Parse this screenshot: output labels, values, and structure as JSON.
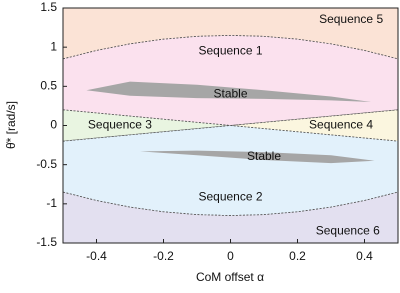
{
  "chart_data": {
    "type": "region",
    "xlabel": "CoM offset α",
    "ylabel": "θ̇* [rad/s]",
    "xlim": [
      -0.5,
      0.5
    ],
    "ylim": [
      -1.5,
      1.5
    ],
    "xticks": [
      -0.4,
      -0.2,
      0,
      0.2,
      0.4
    ],
    "yticks": [
      -1.5,
      -1,
      -0.5,
      0,
      0.5,
      1,
      1.5
    ],
    "regions": [
      {
        "label": "Sequence 5",
        "color": "#fbe3d6",
        "boundary": true,
        "label_x": 0.36,
        "label_y": 1.35,
        "x": [
          -0.5,
          -0.4,
          -0.3,
          -0.2,
          -0.1,
          0,
          0.1,
          0.2,
          0.3,
          0.4,
          0.5,
          0.5,
          -0.5
        ],
        "values": [
          0.85,
          0.958,
          1.042,
          1.102,
          1.138,
          1.15,
          1.138,
          1.102,
          1.042,
          0.958,
          0.85,
          1.5,
          1.5
        ]
      },
      {
        "label": "Sequence 1",
        "color": "#fbe1ee",
        "boundary": true,
        "label_x": 0,
        "label_y": 0.95,
        "x": [
          -0.5,
          -0.4,
          -0.3,
          -0.2,
          -0.1,
          0,
          0.1,
          0.2,
          0.3,
          0.4,
          0.5,
          0.5,
          0,
          -0.5
        ],
        "values": [
          0.85,
          0.958,
          1.042,
          1.102,
          1.138,
          1.15,
          1.138,
          1.102,
          1.042,
          0.958,
          0.85,
          0.2,
          0,
          0.2
        ]
      },
      {
        "label": "Sequence 3",
        "color": "#e9f5e1",
        "boundary": true,
        "label_x": -0.33,
        "label_y": 0,
        "x": [
          -0.5,
          0,
          -0.5
        ],
        "values": [
          0.2,
          0,
          -0.2
        ]
      },
      {
        "label": "Sequence 4",
        "color": "#fbf6df",
        "boundary": true,
        "label_x": 0.33,
        "label_y": 0,
        "x": [
          0.5,
          0,
          0.5
        ],
        "values": [
          0.2,
          0,
          -0.2
        ]
      },
      {
        "label": "Sequence 2",
        "color": "#e2f1fb",
        "boundary": true,
        "label_x": 0,
        "label_y": -0.92,
        "x": [
          -0.5,
          0,
          0.5,
          0.5,
          0.4,
          0.3,
          0.2,
          0.1,
          0,
          -0.1,
          -0.2,
          -0.3,
          -0.4,
          -0.5
        ],
        "values": [
          -0.2,
          0,
          -0.2,
          -0.85,
          -0.958,
          -1.042,
          -1.102,
          -1.138,
          -1.15,
          -1.138,
          -1.102,
          -1.042,
          -0.958,
          -0.85
        ]
      },
      {
        "label": "Sequence 6",
        "color": "#e3e0f0",
        "boundary": true,
        "label_x": 0.35,
        "label_y": -1.35,
        "x": [
          -0.5,
          -0.4,
          -0.3,
          -0.2,
          -0.1,
          0,
          0.1,
          0.2,
          0.3,
          0.4,
          0.5,
          0.5,
          -0.5
        ],
        "values": [
          -0.85,
          -0.958,
          -1.042,
          -1.102,
          -1.138,
          -1.15,
          -1.138,
          -1.102,
          -1.042,
          -0.958,
          -0.85,
          -1.5,
          -1.5
        ]
      },
      {
        "label": "Stable",
        "color": "#a6a6a6",
        "boundary": false,
        "label_x": 0,
        "label_y": 0.4,
        "x": [
          -0.43,
          -0.3,
          -0.1,
          0.1,
          0.3,
          0.42,
          0.3,
          0.1,
          -0.1,
          -0.3
        ],
        "values": [
          0.45,
          0.56,
          0.52,
          0.45,
          0.37,
          0.3,
          0.32,
          0.34,
          0.35,
          0.38
        ]
      },
      {
        "label": "Stable",
        "color": "#a6a6a6",
        "boundary": false,
        "label_x": 0.1,
        "label_y": -0.4,
        "x": [
          -0.27,
          -0.1,
          0.1,
          0.3,
          0.43,
          0.3,
          0.1,
          -0.1
        ],
        "values": [
          -0.33,
          -0.32,
          -0.34,
          -0.38,
          -0.45,
          -0.48,
          -0.44,
          -0.38
        ]
      }
    ]
  }
}
